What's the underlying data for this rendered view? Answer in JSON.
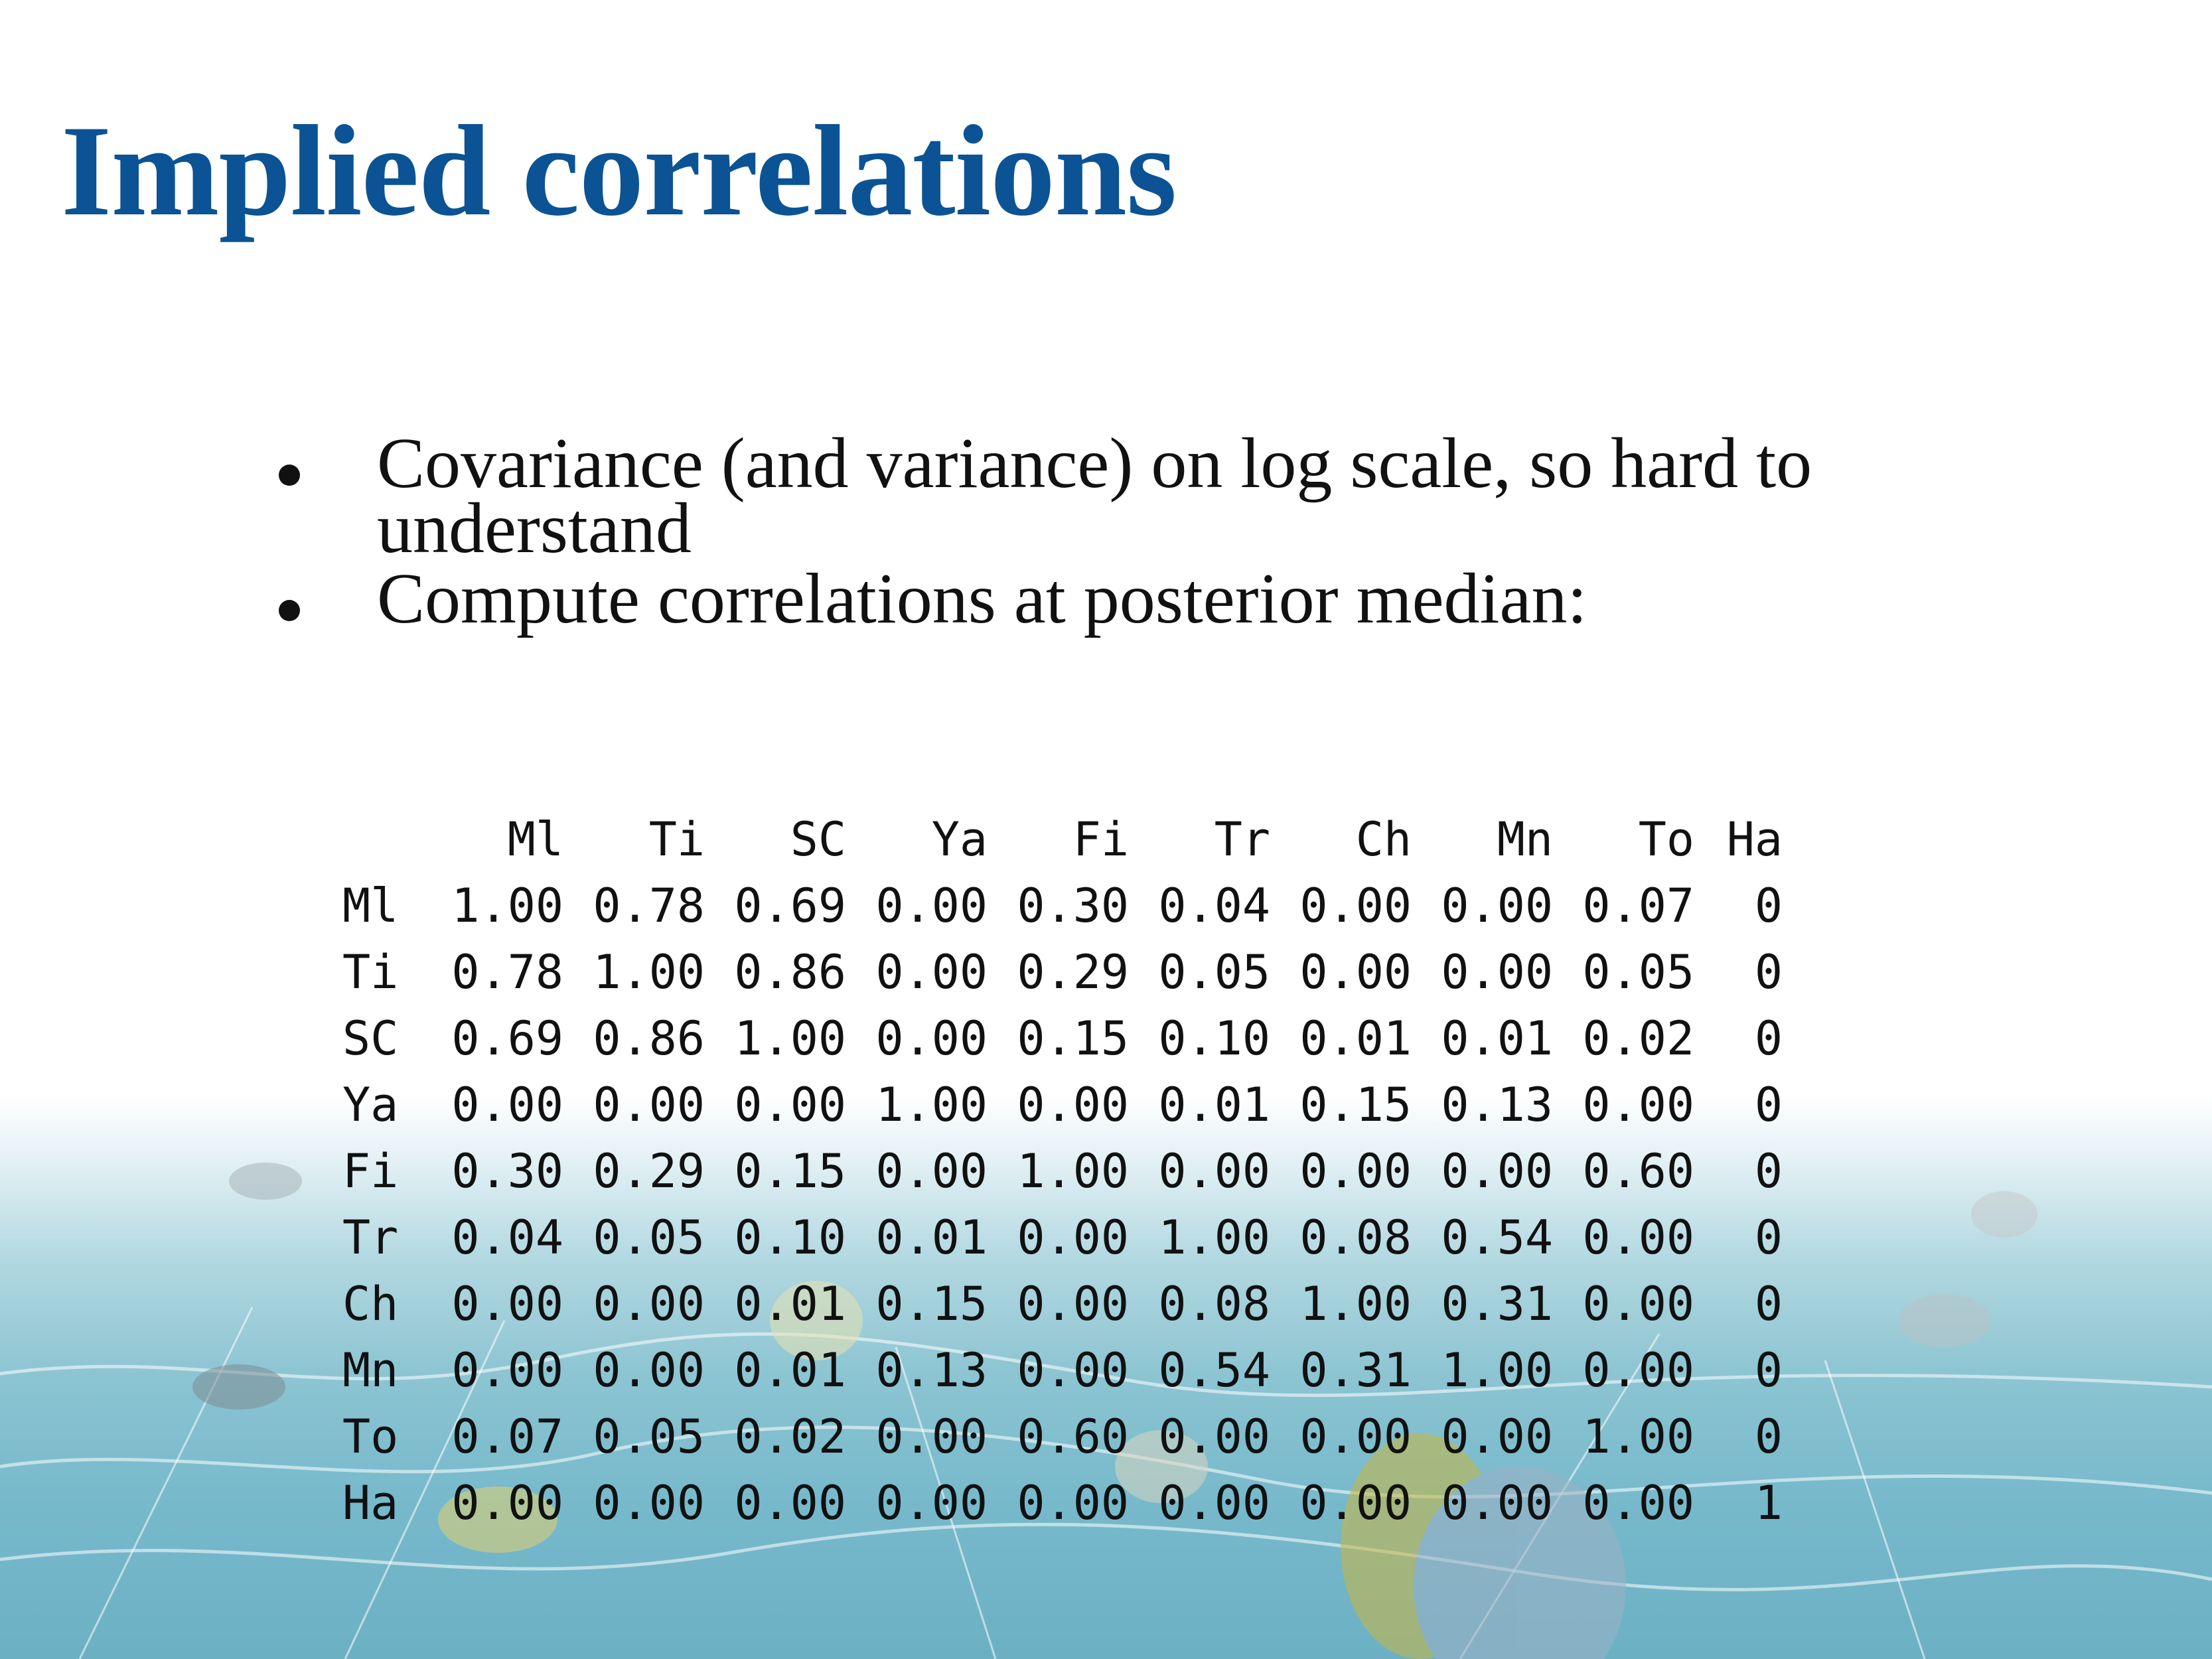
{
  "slide": {
    "title": "Implied correlations",
    "bullets": [
      "Covariance (and variance) on log scale, so hard to understand",
      "Compute correlations at posterior median:"
    ]
  },
  "correlation_table": {
    "columns": [
      "Ml",
      "Ti",
      "SC",
      "Ya",
      "Fi",
      "Tr",
      "Ch",
      "Mn",
      "To",
      "Ha"
    ],
    "rows": [
      {
        "label": "Ml",
        "values": [
          "1.00",
          "0.78",
          "0.69",
          "0.00",
          "0.30",
          "0.04",
          "0.00",
          "0.00",
          "0.07",
          "0"
        ]
      },
      {
        "label": "Ti",
        "values": [
          "0.78",
          "1.00",
          "0.86",
          "0.00",
          "0.29",
          "0.05",
          "0.00",
          "0.00",
          "0.05",
          "0"
        ]
      },
      {
        "label": "SC",
        "values": [
          "0.69",
          "0.86",
          "1.00",
          "0.00",
          "0.15",
          "0.10",
          "0.01",
          "0.01",
          "0.02",
          "0"
        ]
      },
      {
        "label": "Ya",
        "values": [
          "0.00",
          "0.00",
          "0.00",
          "1.00",
          "0.00",
          "0.01",
          "0.15",
          "0.13",
          "0.00",
          "0"
        ]
      },
      {
        "label": "Fi",
        "values": [
          "0.30",
          "0.29",
          "0.15",
          "0.00",
          "1.00",
          "0.00",
          "0.00",
          "0.00",
          "0.60",
          "0"
        ]
      },
      {
        "label": "Tr",
        "values": [
          "0.04",
          "0.05",
          "0.10",
          "0.01",
          "0.00",
          "1.00",
          "0.08",
          "0.54",
          "0.00",
          "0"
        ]
      },
      {
        "label": "Ch",
        "values": [
          "0.00",
          "0.00",
          "0.01",
          "0.15",
          "0.00",
          "0.08",
          "1.00",
          "0.31",
          "0.00",
          "0"
        ]
      },
      {
        "label": "Mn",
        "values": [
          "0.00",
          "0.00",
          "0.01",
          "0.13",
          "0.00",
          "0.54",
          "0.31",
          "1.00",
          "0.00",
          "0"
        ]
      },
      {
        "label": "To",
        "values": [
          "0.07",
          "0.05",
          "0.02",
          "0.00",
          "0.60",
          "0.00",
          "0.00",
          "0.00",
          "1.00",
          "0"
        ]
      },
      {
        "label": "Ha",
        "values": [
          "0.00",
          "0.00",
          "0.00",
          "0.00",
          "0.00",
          "0.00",
          "0.00",
          "0.00",
          "0.00",
          "1"
        ]
      }
    ]
  },
  "colors": {
    "title": "#0b5394",
    "text": "#111111",
    "water": "#8cc4d2"
  }
}
